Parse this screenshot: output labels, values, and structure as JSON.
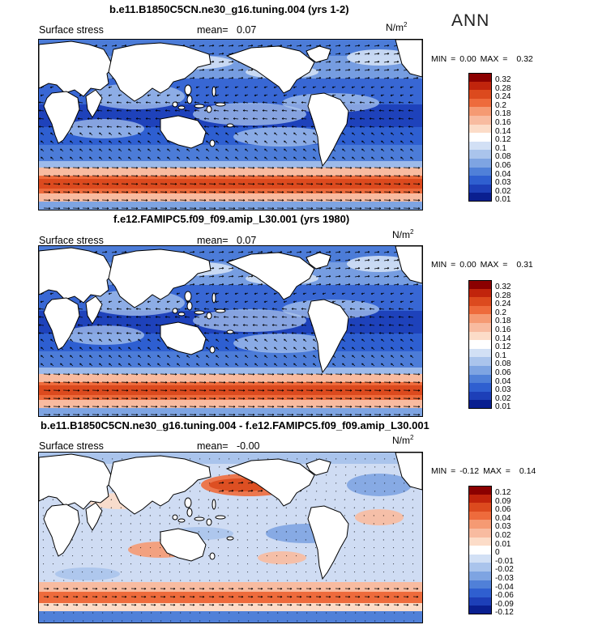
{
  "season": "ANN",
  "panels": [
    {
      "title": "b.e11.B1850C5CN.ne30_g16.tuning.004 (yrs 1-2)",
      "variable": "Surface stress",
      "mean_label": "mean=",
      "mean_value": "0.07",
      "unit_base": "N/m",
      "unit_exp": "2",
      "min_label": "MIN =",
      "min_value": "0.00",
      "max_label": "MAX =",
      "max_value": "0.32",
      "colorbar": [
        "0.32",
        "0.28",
        "0.24",
        "0.2",
        "0.18",
        "0.16",
        "0.14",
        "0.12",
        "0.1",
        "0.08",
        "0.06",
        "0.04",
        "0.03",
        "0.02",
        "0.01"
      ],
      "colors": [
        "#8b0000",
        "#c1240c",
        "#dc4a1e",
        "#ee6b3c",
        "#f59a73",
        "#f8bba0",
        "#fcdcc8",
        "#ffffff",
        "#d2e0f5",
        "#aac4ec",
        "#7ea4e2",
        "#5080d8",
        "#2f5fd0",
        "#1d3fb8",
        "#0a1f90"
      ]
    },
    {
      "title": "f.e12.FAMIPC5.f09_f09.amip_L30.001 (yrs 1980)",
      "variable": "Surface stress",
      "mean_label": "mean=",
      "mean_value": "0.07",
      "unit_base": "N/m",
      "unit_exp": "2",
      "min_label": "MIN =",
      "min_value": "0.00",
      "max_label": "MAX =",
      "max_value": "0.31",
      "colorbar": [
        "0.32",
        "0.28",
        "0.24",
        "0.2",
        "0.18",
        "0.16",
        "0.14",
        "0.12",
        "0.1",
        "0.08",
        "0.06",
        "0.04",
        "0.03",
        "0.02",
        "0.01"
      ],
      "colors": [
        "#8b0000",
        "#c1240c",
        "#dc4a1e",
        "#ee6b3c",
        "#f59a73",
        "#f8bba0",
        "#fcdcc8",
        "#ffffff",
        "#d2e0f5",
        "#aac4ec",
        "#7ea4e2",
        "#5080d8",
        "#2f5fd0",
        "#1d3fb8",
        "#0a1f90"
      ]
    },
    {
      "title": "b.e11.B1850C5CN.ne30_g16.tuning.004 - f.e12.FAMIPC5.f09_f09.amip_L30.001",
      "variable": "Surface stress",
      "mean_label": "mean=",
      "mean_value": "-0.00",
      "unit_base": "N/m",
      "unit_exp": "2",
      "min_label": "MIN =",
      "min_value": "-0.12",
      "max_label": "MAX =",
      "max_value": "0.14",
      "colorbar": [
        "0.12",
        "0.09",
        "0.06",
        "0.04",
        "0.03",
        "0.02",
        "0.01",
        "0",
        "-0.01",
        "-0.02",
        "-0.03",
        "-0.04",
        "-0.06",
        "-0.09",
        "-0.12"
      ],
      "colors": [
        "#8b0000",
        "#c1240c",
        "#dc4a1e",
        "#ee6b3c",
        "#f59a73",
        "#f8bba0",
        "#fcdcc8",
        "#ffffff",
        "#d2e0f5",
        "#aac4ec",
        "#7ea4e2",
        "#5080d8",
        "#2f5fd0",
        "#1d3fb8",
        "#0a1f90"
      ]
    }
  ]
}
